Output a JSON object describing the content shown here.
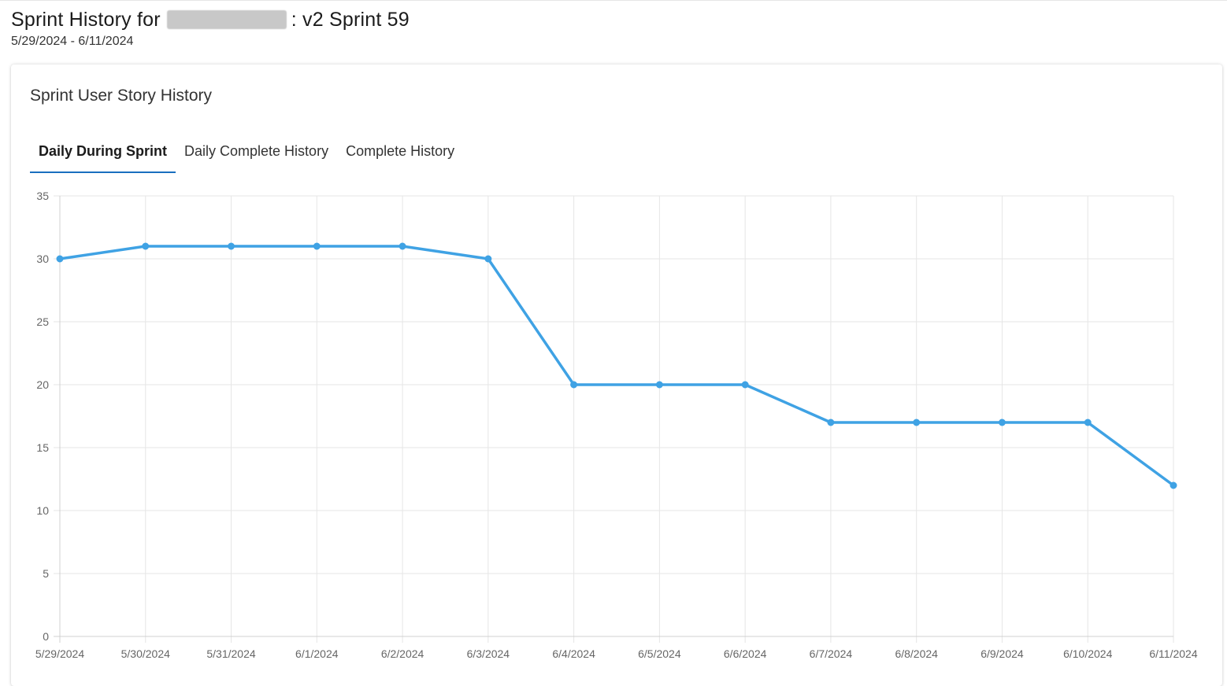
{
  "header": {
    "title_prefix": "Sprint History for",
    "title_suffix": ": v2 Sprint 59",
    "date_range": "5/29/2024 - 6/11/2024"
  },
  "card": {
    "title": "Sprint User Story History"
  },
  "tabs": [
    {
      "label": "Daily During Sprint",
      "active": true
    },
    {
      "label": "Daily Complete History",
      "active": false
    },
    {
      "label": "Complete History",
      "active": false
    }
  ],
  "colors": {
    "line": "#3fa2e4",
    "grid": "#e6e6e6",
    "tab_underline": "#1a6fbf"
  },
  "chart_data": {
    "type": "line",
    "x": [
      "5/29/2024",
      "5/30/2024",
      "5/31/2024",
      "6/1/2024",
      "6/2/2024",
      "6/3/2024",
      "6/4/2024",
      "6/5/2024",
      "6/6/2024",
      "6/7/2024",
      "6/8/2024",
      "6/9/2024",
      "6/10/2024",
      "6/11/2024"
    ],
    "series": [
      {
        "values": [
          30,
          31,
          31,
          31,
          31,
          30,
          20,
          20,
          20,
          17,
          17,
          17,
          17,
          12
        ]
      }
    ],
    "ylim": [
      0,
      35
    ],
    "yticks": [
      0,
      5,
      10,
      15,
      20,
      25,
      30,
      35
    ],
    "grid": true,
    "legend": "none"
  }
}
